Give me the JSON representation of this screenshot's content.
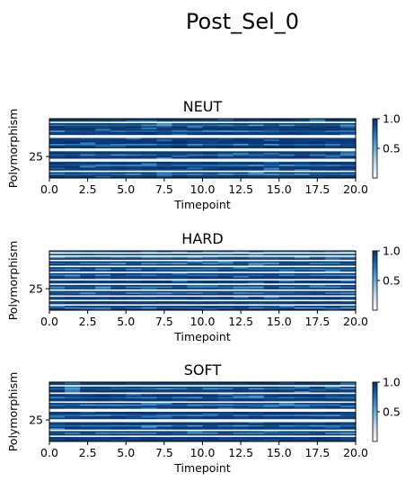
{
  "figure_title": "Post_Sel_0",
  "chart_data": [
    {
      "type": "heatmap",
      "title": "NEUT",
      "xlabel": "Timepoint",
      "ylabel": "Polymorphism",
      "xlim": [
        0,
        20
      ],
      "x_ticks": [
        "0.0",
        "2.5",
        "5.0",
        "7.5",
        "10.0",
        "12.5",
        "15.0",
        "17.5",
        "20.0"
      ],
      "y_ticks": [
        "25"
      ],
      "n_rows": 40,
      "n_cols": 20,
      "colormap": "Blues",
      "colorbar": {
        "range": [
          0,
          1
        ],
        "ticks": [
          "0.5",
          "1.0"
        ]
      },
      "white_rows": [
        2,
        11,
        12,
        20,
        21,
        27,
        28,
        35
      ],
      "light_rows": [
        4,
        8,
        17,
        24,
        31,
        37
      ],
      "seed": 11
    },
    {
      "type": "heatmap",
      "title": "HARD",
      "xlabel": "Timepoint",
      "ylabel": "Polymorphism",
      "xlim": [
        0,
        20
      ],
      "x_ticks": [
        "0.0",
        "2.5",
        "5.0",
        "7.5",
        "10.0",
        "12.5",
        "15.0",
        "17.5",
        "20.0"
      ],
      "y_ticks": [
        "25"
      ],
      "n_rows": 40,
      "n_cols": 20,
      "colormap": "Blues",
      "colorbar": {
        "range": [
          0,
          1
        ],
        "ticks": [
          "0.5",
          "1.0"
        ]
      },
      "white_rows": [
        1,
        3,
        6,
        10,
        14,
        19,
        22,
        26,
        30,
        33,
        36
      ],
      "light_rows": [
        0,
        4,
        8,
        12,
        16,
        24,
        28,
        38
      ],
      "seed": 23
    },
    {
      "type": "heatmap",
      "title": "SOFT",
      "xlabel": "Timepoint",
      "ylabel": "Polymorphism",
      "xlim": [
        0,
        20
      ],
      "x_ticks": [
        "0.0",
        "2.5",
        "5.0",
        "7.5",
        "10.0",
        "12.5",
        "15.0",
        "17.5",
        "20.0"
      ],
      "y_ticks": [
        "25"
      ],
      "n_rows": 40,
      "n_cols": 20,
      "colormap": "Blues",
      "colorbar": {
        "range": [
          0,
          1
        ],
        "ticks": [
          "0.5",
          "1.0"
        ]
      },
      "white_rows": [
        2,
        7,
        13,
        18,
        19,
        25,
        26,
        32,
        36
      ],
      "light_rows": [
        4,
        10,
        15,
        22,
        29,
        34
      ],
      "seed": 37
    }
  ]
}
